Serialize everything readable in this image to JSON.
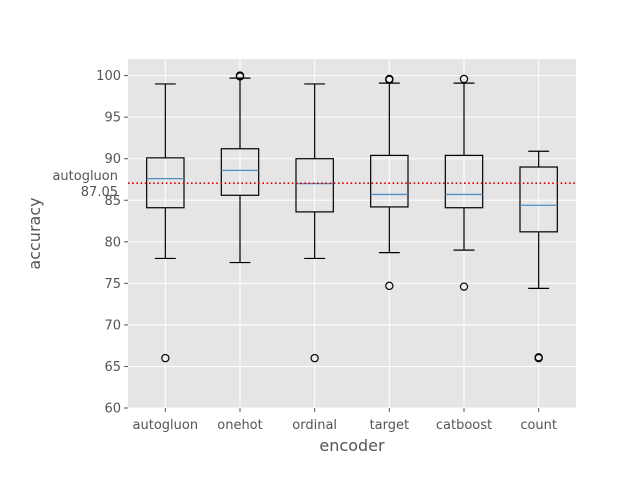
{
  "chart_data": {
    "type": "box",
    "title": "",
    "xlabel": "encoder",
    "ylabel": "accuracy",
    "ylim": [
      60,
      102
    ],
    "yticks": [
      60,
      65,
      70,
      75,
      80,
      85,
      90,
      95,
      100
    ],
    "grid": true,
    "categories": [
      "autogluon",
      "onehot",
      "ordinal",
      "target",
      "catboost",
      "count"
    ],
    "boxes": [
      {
        "name": "autogluon",
        "whisker_low": 78.0,
        "q1": 84.1,
        "median": 87.6,
        "q3": 90.1,
        "whisker_high": 99.0,
        "outliers": [
          66.0
        ]
      },
      {
        "name": "onehot",
        "whisker_low": 77.5,
        "q1": 85.6,
        "median": 88.6,
        "q3": 91.2,
        "whisker_high": 99.7,
        "outliers": [
          99.9,
          100.0
        ]
      },
      {
        "name": "ordinal",
        "whisker_low": 78.0,
        "q1": 83.6,
        "median": 87.0,
        "q3": 90.0,
        "whisker_high": 99.0,
        "outliers": [
          66.0
        ]
      },
      {
        "name": "target",
        "whisker_low": 78.7,
        "q1": 84.2,
        "median": 85.7,
        "q3": 90.4,
        "whisker_high": 99.1,
        "outliers": [
          74.7,
          99.5,
          99.6
        ]
      },
      {
        "name": "catboost",
        "whisker_low": 79.0,
        "q1": 84.1,
        "median": 85.7,
        "q3": 90.4,
        "whisker_high": 99.1,
        "outliers": [
          74.6,
          99.6
        ]
      },
      {
        "name": "count",
        "whisker_low": 74.4,
        "q1": 81.2,
        "median": 84.4,
        "q3": 89.0,
        "whisker_high": 90.9,
        "outliers": [
          66.0,
          66.1
        ]
      }
    ],
    "reference_line": {
      "value": 87.05,
      "label_name": "autogluon",
      "label_value": "87.05",
      "color": "#dd0000",
      "style": "dotted"
    },
    "colors": {
      "background": "#e5e5e5",
      "grid": "#ffffff",
      "box": "#000000",
      "median": "#4f8fc8"
    }
  }
}
